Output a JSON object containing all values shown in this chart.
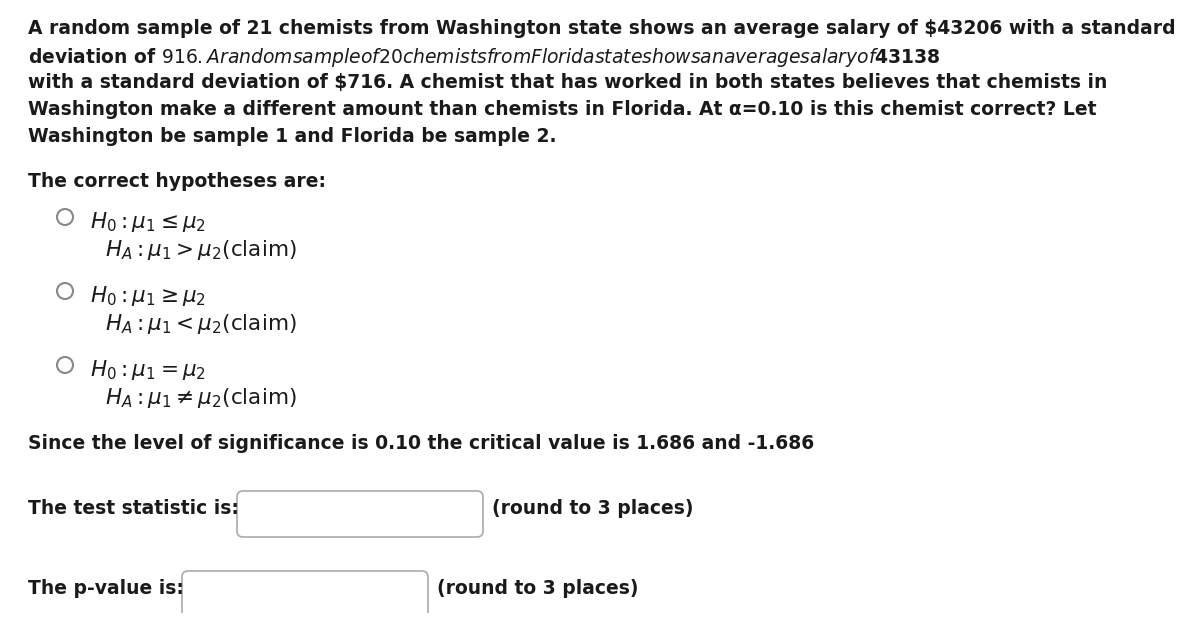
{
  "bg_color": "#ffffff",
  "text_color": "#1a1a2e",
  "body_color": "#1a1a1a",
  "paragraph_lines": [
    "A random sample of 21 chemists from Washington state shows an average salary of $43206 with a standard",
    "deviation of $916. A random sample of 20 chemists from Florida state shows an average salary of $43138",
    "with a standard deviation of $716. A chemist that has worked in both states believes that chemists in",
    "Washington make a different amount than chemists in Florida. At α=0.10 is this chemist correct? Let",
    "Washington be sample 1 and Florida be sample 2."
  ],
  "hypotheses_label": "The correct hypotheses are:",
  "significance_text": "Since the level of significance is 0.10 the critical value is 1.686 and -1.686",
  "test_stat_label": "The test statistic is:",
  "test_stat_suffix": "(round to 3 places)",
  "pvalue_label": "The p-value is:",
  "pvalue_suffix": "(round to 3 places)",
  "font_size_body": 13.5,
  "font_size_math": 15.5,
  "box_edge_color": "#aaaaaa",
  "circle_color": "#888888"
}
